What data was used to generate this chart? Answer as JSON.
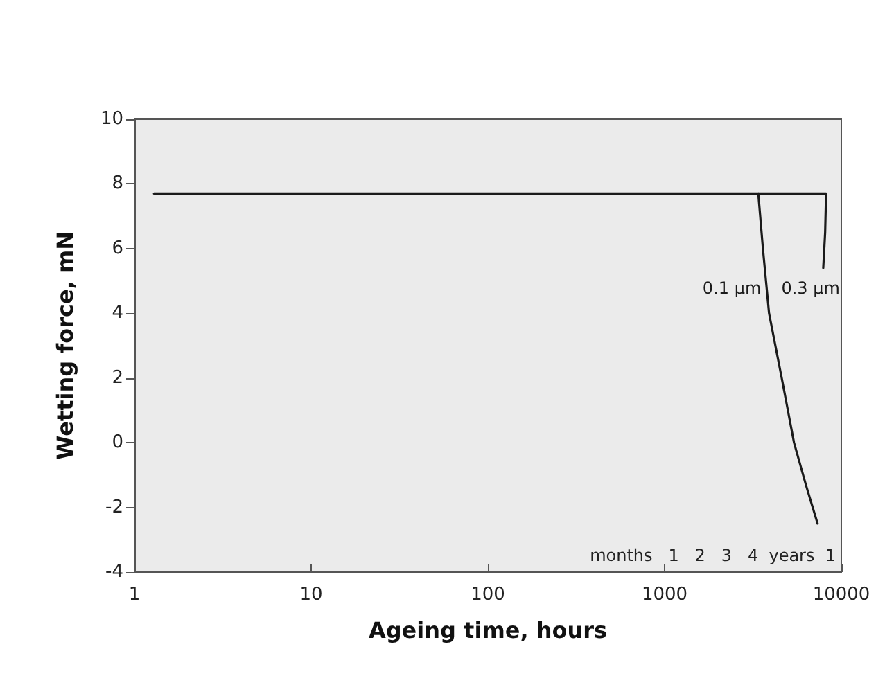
{
  "chart_data": {
    "type": "line",
    "xlabel": "Ageing time, hours",
    "ylabel": "Wetting force, mN",
    "log": "x",
    "xlim": [
      1,
      10000
    ],
    "xticks": [
      1,
      10,
      100,
      1000,
      10000
    ],
    "ylim": [
      -4,
      10
    ],
    "yticks": [
      -4,
      -2,
      0,
      2,
      4,
      6,
      8,
      10
    ],
    "grid": false,
    "legend": false,
    "marker": "none",
    "line_style": "solid",
    "series": [
      {
        "name": "0.1 µm",
        "color": "#1a1a1a",
        "x": [
          1.29,
          1000,
          3390,
          3600,
          3900,
          4600,
          5400,
          6300,
          7340
        ],
        "values": [
          7.7,
          7.7,
          7.7,
          6,
          4,
          2,
          0,
          -1.3,
          -2.5
        ]
      },
      {
        "name": "0.3 µm",
        "color": "#1a1a1a",
        "x": [
          3390,
          8200,
          8100,
          7900
        ],
        "values": [
          7.7,
          7.7,
          6.5,
          5.4
        ]
      }
    ],
    "annotations": [
      "months   1   2   3   4  years  1"
    ]
  }
}
